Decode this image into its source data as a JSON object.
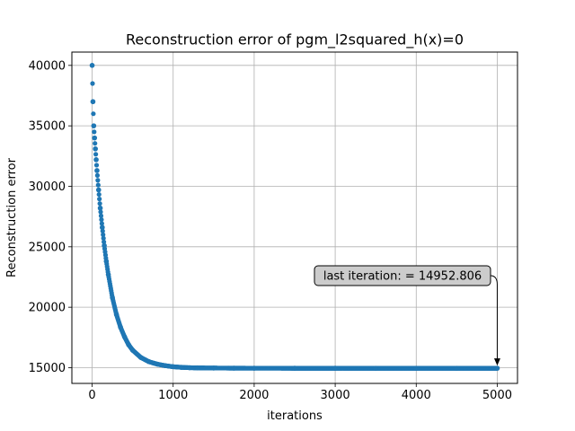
{
  "chart_data": {
    "type": "scatter",
    "title": "Reconstruction error of pgm_l2squared_h(x)=0",
    "xlabel": "iterations",
    "ylabel": "Reconstruction error",
    "xlim": [
      -250,
      5250
    ],
    "ylim": [
      13700,
      41100
    ],
    "xticks": [
      0,
      1000,
      2000,
      3000,
      4000,
      5000
    ],
    "xtick_labels": [
      "0",
      "1000",
      "2000",
      "3000",
      "4000",
      "5000"
    ],
    "yticks": [
      15000,
      20000,
      25000,
      30000,
      35000,
      40000
    ],
    "ytick_labels": [
      "15000",
      "20000",
      "25000",
      "30000",
      "35000",
      "40000"
    ],
    "grid": true,
    "marker_color": "#1f77b4",
    "series": [
      {
        "x": [
          0,
          10,
          20,
          30,
          40,
          50,
          60,
          80,
          100,
          125,
          150,
          175,
          200,
          250,
          300,
          350,
          400,
          450,
          500,
          600,
          700,
          800,
          900,
          1000,
          1100,
          1200,
          1300,
          1500,
          1750,
          2000,
          2500,
          3000,
          3500,
          4000,
          4500,
          5000
        ],
        "y": [
          40000,
          37000,
          35000,
          34000,
          33100,
          32200,
          31300,
          29700,
          28200,
          26600,
          25100,
          23800,
          22700,
          20800,
          19400,
          18350,
          17550,
          16900,
          16450,
          15850,
          15500,
          15300,
          15170,
          15080,
          15030,
          15000,
          14985,
          14970,
          14962,
          14958,
          14955,
          14954,
          14953.5,
          14953,
          14952.9,
          14952.806
        ]
      }
    ],
    "annotation": {
      "text": "last iteration: = 14952.806",
      "x": 5000,
      "y": 14952.806
    }
  }
}
